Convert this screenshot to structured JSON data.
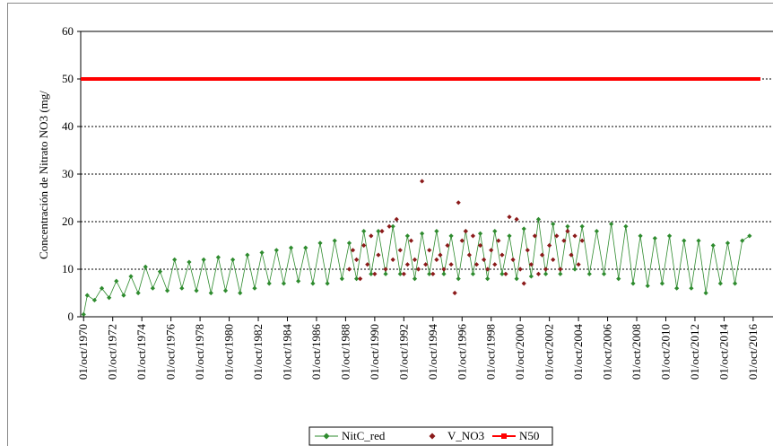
{
  "chart_data": {
    "type": "line",
    "y_label": "Concentración de Nitrato NO3 (mg/",
    "xlim": [
      1970.55,
      2017.25
    ],
    "ylim": [
      0,
      60
    ],
    "yticks": [
      0,
      10,
      20,
      30,
      40,
      50,
      60
    ],
    "xticks": [
      {
        "value": 1970.75,
        "label": "01/oct/1970"
      },
      {
        "value": 1972.75,
        "label": "01/oct/1972"
      },
      {
        "value": 1974.75,
        "label": "01/oct/1974"
      },
      {
        "value": 1976.75,
        "label": "01/oct/1976"
      },
      {
        "value": 1978.75,
        "label": "01/oct/1978"
      },
      {
        "value": 1980.75,
        "label": "01/oct/1980"
      },
      {
        "value": 1982.75,
        "label": "01/oct/1982"
      },
      {
        "value": 1984.75,
        "label": "01/oct/1984"
      },
      {
        "value": 1986.75,
        "label": "01/oct/1986"
      },
      {
        "value": 1988.75,
        "label": "01/oct/1988"
      },
      {
        "value": 1990.75,
        "label": "01/oct/1990"
      },
      {
        "value": 1992.75,
        "label": "01/oct/1992"
      },
      {
        "value": 1994.75,
        "label": "01/oct/1994"
      },
      {
        "value": 1996.75,
        "label": "01/oct/1996"
      },
      {
        "value": 1998.75,
        "label": "01/oct/1998"
      },
      {
        "value": 2000.75,
        "label": "01/oct/2000"
      },
      {
        "value": 2002.75,
        "label": "01/oct/2002"
      },
      {
        "value": 2004.75,
        "label": "01/oct/2004"
      },
      {
        "value": 2006.75,
        "label": "01/oct/2006"
      },
      {
        "value": 2008.75,
        "label": "01/oct/2008"
      },
      {
        "value": 2010.75,
        "label": "01/oct/2010"
      },
      {
        "value": 2012.75,
        "label": "01/oct/2012"
      },
      {
        "value": 2014.75,
        "label": "01/oct/2014"
      },
      {
        "value": 2016.75,
        "label": "01/oct/2016"
      }
    ],
    "grid": true,
    "series": [
      {
        "name": "NitC_red",
        "color": "#2e8b2e",
        "line": true,
        "marker": "diamond",
        "x": [
          1970.75,
          1971,
          1971.5,
          1972,
          1972.5,
          1973,
          1973.5,
          1974,
          1974.5,
          1975,
          1975.5,
          1976,
          1976.5,
          1977,
          1977.5,
          1978,
          1978.5,
          1979,
          1979.5,
          1980,
          1980.5,
          1981,
          1981.5,
          1982,
          1982.5,
          1983,
          1983.5,
          1984,
          1984.5,
          1985,
          1985.5,
          1986,
          1986.5,
          1987,
          1987.5,
          1988,
          1988.5,
          1989,
          1989.5,
          1990,
          1990.5,
          1991,
          1991.5,
          1992,
          1992.5,
          1993,
          1993.5,
          1994,
          1994.5,
          1995,
          1995.5,
          1996,
          1996.5,
          1997,
          1997.5,
          1998,
          1998.5,
          1999,
          1999.5,
          2000,
          2000.5,
          2001,
          2001.5,
          2002,
          2002.5,
          2003,
          2003.5,
          2004,
          2004.5,
          2005,
          2005.5,
          2006,
          2006.5,
          2007,
          2007.5,
          2008,
          2008.5,
          2009,
          2009.5,
          2010,
          2010.5,
          2011,
          2011.5,
          2012,
          2012.5,
          2013,
          2013.5,
          2014,
          2014.5,
          2015,
          2015.5,
          2016,
          2016.5
        ],
        "values": [
          0.5,
          4.5,
          3.5,
          6,
          4,
          7.5,
          4.5,
          8.5,
          5,
          10.5,
          6,
          9.5,
          5.5,
          12,
          6,
          11.5,
          5.5,
          12,
          5,
          12.5,
          5.5,
          12,
          5,
          13,
          6,
          13.5,
          7,
          14,
          7,
          14.5,
          7.5,
          14.5,
          7,
          15.5,
          7,
          16,
          8,
          15.5,
          8,
          18,
          9,
          18,
          9,
          19,
          9,
          17,
          8,
          17.5,
          9,
          18,
          9,
          17,
          8,
          18,
          9,
          17.5,
          8,
          18,
          9,
          17,
          8,
          18.5,
          8.5,
          20.5,
          9,
          19.5,
          9,
          19,
          10,
          19,
          9,
          18,
          9,
          19.5,
          8,
          19,
          7,
          17,
          6.5,
          16.5,
          7,
          17,
          6,
          16,
          6,
          16,
          5,
          15,
          7,
          15.5,
          7,
          16,
          17
        ]
      },
      {
        "name": "V_NO3",
        "color": "#8b1a1a",
        "line": false,
        "marker": "diamond",
        "x": [
          1989,
          1989.25,
          1989.5,
          1989.75,
          1990,
          1990.25,
          1990.5,
          1990.75,
          1991,
          1991.25,
          1991.5,
          1991.75,
          1992,
          1992.25,
          1992.5,
          1992.75,
          1993,
          1993.25,
          1993.5,
          1993.75,
          1994,
          1994.25,
          1994.5,
          1994.75,
          1995,
          1995.25,
          1995.5,
          1995.75,
          1996,
          1996.25,
          1996.5,
          1996.75,
          1997,
          1997.25,
          1997.5,
          1997.75,
          1998,
          1998.25,
          1998.5,
          1998.75,
          1999,
          1999.25,
          1999.5,
          1999.75,
          2000,
          2000.25,
          2000.5,
          2000.75,
          2001,
          2001.25,
          2001.5,
          2001.75,
          2002,
          2002.25,
          2002.5,
          2002.75,
          2003,
          2003.25,
          2003.5,
          2003.75,
          2004,
          2004.25,
          2004.5,
          2004.75,
          2005
        ],
        "values": [
          10,
          14,
          12,
          8,
          15,
          11,
          17,
          9,
          13,
          18,
          10,
          19,
          12,
          20.5,
          14,
          9,
          11,
          16,
          12,
          10,
          28.5,
          11,
          14,
          9,
          12,
          13,
          10,
          15,
          11,
          5,
          24,
          16,
          18,
          13,
          17,
          11,
          15,
          12,
          10,
          14,
          11,
          16,
          13,
          9,
          21,
          12,
          20.5,
          10,
          7,
          14,
          11,
          17,
          9,
          13,
          10,
          15,
          12,
          17,
          10,
          16,
          18,
          13,
          17,
          11,
          16
        ]
      },
      {
        "name": "N50",
        "color": "#ff0000",
        "line": true,
        "marker": "square",
        "x": [
          1970.55,
          2017.25
        ],
        "values": [
          50,
          50
        ]
      }
    ]
  }
}
